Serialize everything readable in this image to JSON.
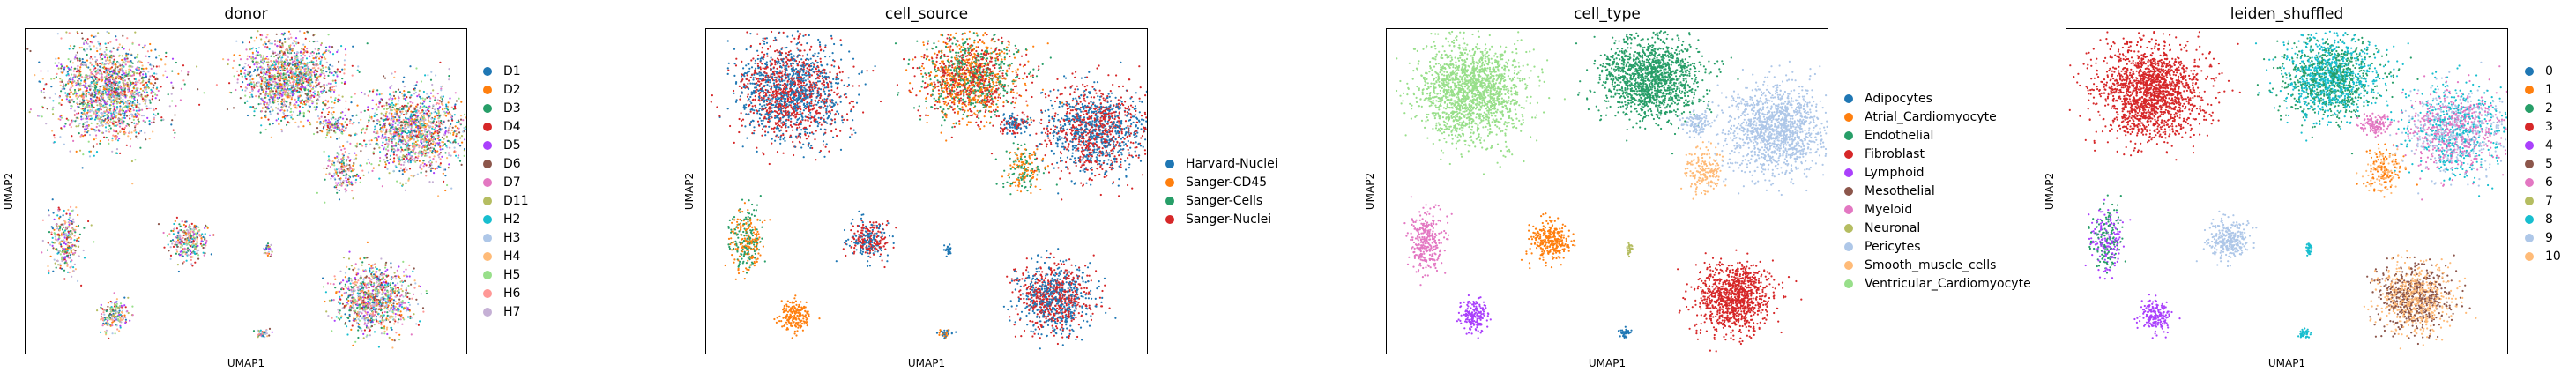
{
  "chart_data": [
    {
      "type": "scatter",
      "title": "donor",
      "xlabel": "UMAP1",
      "ylabel": "UMAP2",
      "legend": [
        "D1",
        "D2",
        "D3",
        "D4",
        "D5",
        "D6",
        "D7",
        "D11",
        "H2",
        "H3",
        "H4",
        "H5",
        "H6",
        "H7"
      ],
      "colors": [
        "#1f77b4",
        "#ff7f0e",
        "#279e68",
        "#d62728",
        "#aa40fc",
        "#8c564b",
        "#e377c2",
        "#b5bd61",
        "#17becf",
        "#aec7e8",
        "#ffbb78",
        "#98df8a",
        "#ff9896",
        "#c5b0d5"
      ],
      "legend_position": "right"
    },
    {
      "type": "scatter",
      "title": "cell_source",
      "xlabel": "UMAP1",
      "ylabel": "UMAP2",
      "legend": [
        "Harvard-Nuclei",
        "Sanger-CD45",
        "Sanger-Cells",
        "Sanger-Nuclei"
      ],
      "colors": [
        "#1f77b4",
        "#ff7f0e",
        "#279e68",
        "#d62728"
      ],
      "legend_position": "right"
    },
    {
      "type": "scatter",
      "title": "cell_type",
      "xlabel": "UMAP1",
      "ylabel": "UMAP2",
      "legend": [
        "Adipocytes",
        "Atrial_Cardiomyocyte",
        "Endothelial",
        "Fibroblast",
        "Lymphoid",
        "Mesothelial",
        "Myeloid",
        "Neuronal",
        "Pericytes",
        "Smooth_muscle_cells",
        "Ventricular_Cardiomyocyte"
      ],
      "colors": [
        "#1f77b4",
        "#ff7f0e",
        "#279e68",
        "#d62728",
        "#aa40fc",
        "#8c564b",
        "#e377c2",
        "#b5bd61",
        "#aec7e8",
        "#ffbb78",
        "#98df8a"
      ],
      "legend_position": "right"
    },
    {
      "type": "scatter",
      "title": "leiden_shuffled",
      "xlabel": "UMAP1",
      "ylabel": "UMAP2",
      "legend": [
        "0",
        "1",
        "2",
        "3",
        "4",
        "5",
        "6",
        "7",
        "8",
        "9",
        "10"
      ],
      "colors": [
        "#1f77b4",
        "#ff7f0e",
        "#279e68",
        "#d62728",
        "#aa40fc",
        "#8c564b",
        "#e377c2",
        "#b5bd61",
        "#17becf",
        "#aec7e8",
        "#ffbb78"
      ],
      "legend_position": "right"
    }
  ]
}
